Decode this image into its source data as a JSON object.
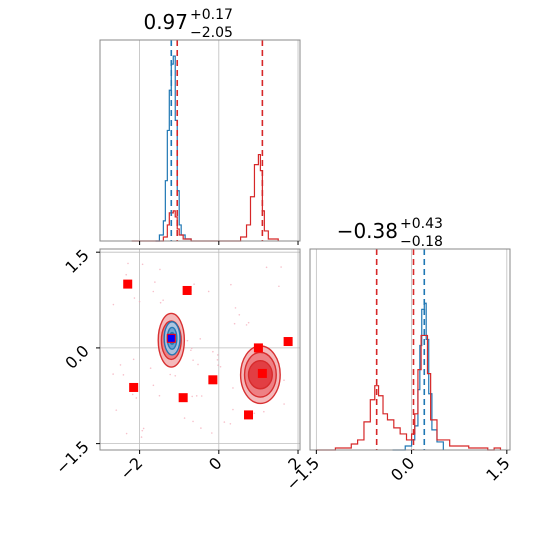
{
  "chart_data": {
    "type": "corner",
    "panels": [
      {
        "id": "hist-x",
        "type": "histogram",
        "title": {
          "value": "0.97",
          "plus": "+0.17",
          "minus": "−2.05"
        },
        "xlim": [
          -3,
          2.05
        ],
        "ylim": [
          0,
          1.0
        ],
        "grid": true,
        "vlines": [
          {
            "x": -1.2,
            "color": "#1f77b4"
          },
          {
            "x": -1.05,
            "color": "#d62728"
          },
          {
            "x": 1.1,
            "color": "#d62728"
          }
        ],
        "series": [
          {
            "name": "",
            "color": "#1f77b4",
            "points": [
              [
                -1.6,
                0
              ],
              [
                -1.5,
                0.03
              ],
              [
                -1.4,
                0.1
              ],
              [
                -1.35,
                0.3
              ],
              [
                -1.3,
                0.55
              ],
              [
                -1.25,
                0.75
              ],
              [
                -1.2,
                0.88
              ],
              [
                -1.15,
                0.92
              ],
              [
                -1.1,
                0.6
              ],
              [
                -1.05,
                0.25
              ],
              [
                -1.0,
                0.08
              ],
              [
                -0.95,
                0.03
              ],
              [
                -0.85,
                0.01
              ],
              [
                -0.7,
                0
              ]
            ]
          },
          {
            "name": "",
            "color": "#d62728",
            "points": [
              [
                -2.2,
                0
              ],
              [
                -1.4,
                0.02
              ],
              [
                -1.3,
                0.08
              ],
              [
                -1.25,
                0.14
              ],
              [
                -1.15,
                0.15
              ],
              [
                -1.1,
                0.12
              ],
              [
                -1.05,
                0.06
              ],
              [
                -1.0,
                0.03
              ],
              [
                -0.9,
                0.01
              ],
              [
                -0.7,
                0
              ],
              [
                0.45,
                0
              ],
              [
                0.55,
                0.02
              ],
              [
                0.7,
                0.08
              ],
              [
                0.8,
                0.22
              ],
              [
                0.9,
                0.38
              ],
              [
                1.0,
                0.43
              ],
              [
                1.05,
                0.35
              ],
              [
                1.1,
                0.15
              ],
              [
                1.15,
                0.05
              ],
              [
                1.25,
                0.01
              ],
              [
                1.5,
                0
              ]
            ]
          }
        ]
      },
      {
        "id": "hist-y",
        "type": "histogram",
        "title": {
          "value": "−0.38",
          "plus": "+0.43",
          "minus": "−0.18"
        },
        "xlim": [
          -1.6,
          1.55
        ],
        "ylim": [
          0,
          1.0
        ],
        "grid": true,
        "tick_labels": [
          "−1.5",
          "0.0",
          "1.5"
        ],
        "ticks": [
          -1.5,
          0.0,
          1.5
        ],
        "vlines": [
          {
            "x": -0.55,
            "color": "#d62728"
          },
          {
            "x": 0.03,
            "color": "#d62728"
          },
          {
            "x": 0.2,
            "color": "#1f77b4"
          }
        ],
        "series": [
          {
            "name": "",
            "color": "#1f77b4",
            "points": [
              [
                -0.3,
                0
              ],
              [
                -0.1,
                0.02
              ],
              [
                0.0,
                0.05
              ],
              [
                0.05,
                0.12
              ],
              [
                0.1,
                0.3
              ],
              [
                0.13,
                0.52
              ],
              [
                0.16,
                0.7
              ],
              [
                0.2,
                0.73
              ],
              [
                0.23,
                0.55
              ],
              [
                0.27,
                0.28
              ],
              [
                0.32,
                0.1
              ],
              [
                0.4,
                0.04
              ],
              [
                0.5,
                0
              ]
            ]
          },
          {
            "name": "",
            "color": "#d62728",
            "points": [
              [
                -1.5,
                0
              ],
              [
                -1.2,
                0.01
              ],
              [
                -0.95,
                0.03
              ],
              [
                -0.85,
                0.05
              ],
              [
                -0.75,
                0.14
              ],
              [
                -0.65,
                0.25
              ],
              [
                -0.58,
                0.32
              ],
              [
                -0.52,
                0.27
              ],
              [
                -0.45,
                0.18
              ],
              [
                -0.38,
                0.15
              ],
              [
                -0.28,
                0.11
              ],
              [
                -0.18,
                0.08
              ],
              [
                -0.08,
                0.05
              ],
              [
                0.0,
                0.08
              ],
              [
                0.05,
                0.18
              ],
              [
                0.1,
                0.4
              ],
              [
                0.15,
                0.57
              ],
              [
                0.2,
                0.57
              ],
              [
                0.25,
                0.38
              ],
              [
                0.3,
                0.15
              ],
              [
                0.4,
                0.05
              ],
              [
                0.6,
                0.02
              ],
              [
                0.9,
                0.01
              ],
              [
                1.2,
                0
              ],
              [
                1.3,
                0.01
              ],
              [
                1.4,
                0
              ]
            ]
          }
        ]
      },
      {
        "id": "scatter-xy",
        "type": "scatter",
        "xlim": [
          -3,
          2.05
        ],
        "ylim": [
          -1.6,
          1.55
        ],
        "grid": true,
        "x_ticks": [
          -2,
          0,
          2
        ],
        "x_tick_labels": [
          "−2",
          "0",
          "2"
        ],
        "y_ticks": [
          -1.5,
          0.0,
          1.5
        ],
        "y_tick_labels": [
          "−1.5",
          "0.0",
          "1.5"
        ],
        "hlines": [
          -1.5,
          1.5
        ],
        "contours": [
          {
            "color": "#d62728",
            "cx": 1.05,
            "cy": -0.42,
            "rx": [
              0.5,
              0.4,
              0.3
            ],
            "ry": [
              0.45,
              0.35,
              0.22
            ]
          },
          {
            "color": "#d62728",
            "cx": -1.2,
            "cy": 0.12,
            "rx": [
              0.33,
              0.25,
              0.16
            ],
            "ry": [
              0.42,
              0.3,
              0.2
            ]
          },
          {
            "color": "#1f77b4",
            "cx": -1.18,
            "cy": 0.15,
            "rx": [
              0.2,
              0.12,
              0.07
            ],
            "ry": [
              0.26,
              0.17,
              0.09
            ]
          }
        ],
        "markers": {
          "color": "#ff0000",
          "points": [
            [
              -2.3,
              1.0
            ],
            [
              -0.8,
              0.9
            ],
            [
              -2.15,
              -0.62
            ],
            [
              -0.9,
              -0.78
            ],
            [
              -0.15,
              -0.5
            ],
            [
              0.75,
              -1.05
            ],
            [
              1.0,
              0.0
            ],
            [
              1.1,
              -0.4
            ],
            [
              1.75,
              0.1
            ],
            [
              -1.2,
              0.15
            ]
          ]
        },
        "best": {
          "color": "#0000ff",
          "point": [
            -1.2,
            0.15
          ]
        }
      }
    ]
  }
}
